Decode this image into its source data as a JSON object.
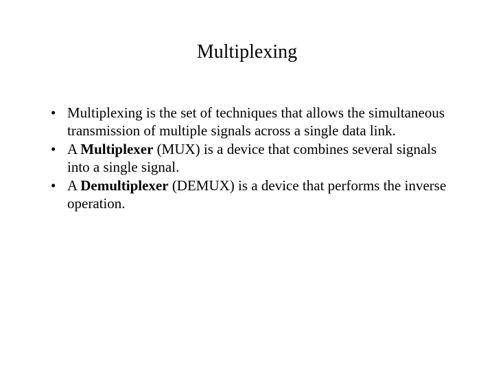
{
  "title": "Multiplexing",
  "bullets": [
    {
      "pre": "Multiplexing is the set of techniques that allows the simultaneous transmission of multiple signals across a single data link.",
      "bold": "",
      "post": ""
    },
    {
      "pre": "A ",
      "bold": "Multiplexer",
      "post": " (MUX) is a device that combines several signals into a single signal."
    },
    {
      "pre": "A ",
      "bold": "Demultiplexer",
      "post": " (DEMUX) is a device  that performs the inverse operation."
    }
  ],
  "colors": {
    "background": "#ffffff",
    "text": "#000000"
  },
  "typography": {
    "family": "Times New Roman",
    "title_size_pt": 28,
    "body_size_pt": 21,
    "title_weight": "normal",
    "bold_weight": "bold"
  }
}
